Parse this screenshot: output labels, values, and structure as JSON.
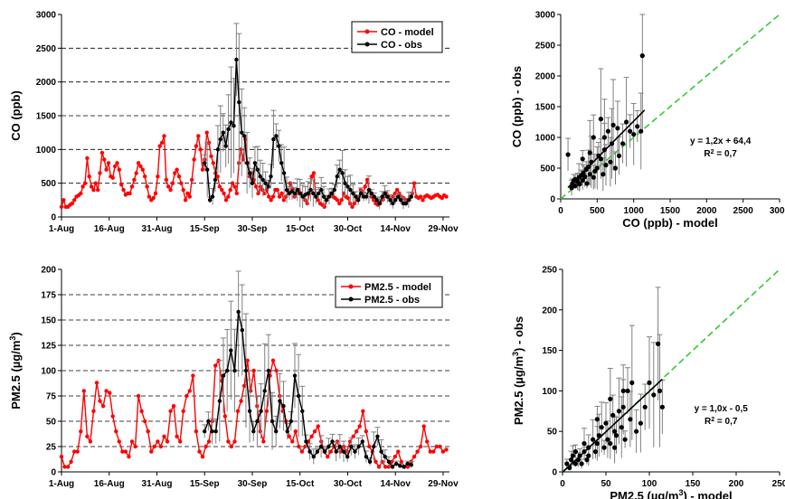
{
  "colors": {
    "model": "#ff0000",
    "obs": "#000000",
    "identity": "#33cc33",
    "fit": "#000000",
    "errorbar": "#808080",
    "grid": "#000000"
  },
  "chart_data": [
    {
      "type": "line",
      "xlabel": "",
      "ylabel": "CO (ppb)",
      "ylim": [
        0,
        3000
      ],
      "yticks": [
        0,
        500,
        1000,
        1500,
        2000,
        2500,
        3000
      ],
      "xtick_labels": [
        "1-Aug",
        "16-Aug",
        "31-Aug",
        "15-Sep",
        "30-Sep",
        "15-Oct",
        "30-Oct",
        "14-Nov",
        "29-Nov"
      ],
      "xtick_days": [
        0,
        15,
        30,
        45,
        60,
        75,
        90,
        105,
        120
      ],
      "x_unit": "days after 1-Aug",
      "legend": "top-right",
      "grid": "horizontal dashed",
      "series": [
        {
          "name": "CO - model",
          "color": "#ff0000",
          "x_start_day": 0,
          "x_step_days": 1,
          "values": [
            150,
            250,
            150,
            150,
            180,
            200,
            250,
            300,
            320,
            350,
            450,
            500,
            870,
            600,
            450,
            400,
            500,
            400,
            650,
            950,
            850,
            700,
            800,
            600,
            580,
            750,
            800,
            700,
            480,
            400,
            330,
            350,
            350,
            450,
            550,
            650,
            800,
            750,
            700,
            600,
            450,
            300,
            250,
            280,
            350,
            600,
            1050,
            1100,
            1200,
            550,
            450,
            400,
            500,
            650,
            700,
            600,
            500,
            400,
            250,
            350,
            300,
            550,
            850,
            1050,
            1200,
            1000,
            700,
            850,
            1250,
            1100,
            900,
            800,
            650,
            600,
            450,
            400,
            350,
            250,
            300,
            400,
            500,
            450,
            350,
            800,
            1000,
            850,
            1150,
            800,
            600,
            650,
            550,
            450,
            350,
            450,
            400,
            350,
            400,
            300,
            250,
            300,
            400,
            400,
            300,
            350,
            250,
            300,
            350,
            500,
            420,
            300,
            350,
            400,
            350,
            300,
            250,
            200,
            350,
            600,
            650,
            300,
            250,
            200,
            180,
            150,
            250,
            300,
            350,
            300,
            280,
            250,
            200,
            250,
            350,
            300,
            280,
            200,
            150,
            200,
            250,
            300,
            400,
            350,
            450,
            550,
            400,
            300,
            250,
            200,
            180,
            200,
            250,
            300,
            350,
            300,
            250,
            300,
            350,
            400,
            350,
            300,
            280,
            250,
            250,
            300,
            350,
            500,
            300,
            280,
            300,
            250,
            300,
            320,
            300,
            280,
            300,
            320,
            330,
            300,
            280,
            320,
            300
          ]
        },
        {
          "name": "CO - obs",
          "color": "#000000",
          "x_start_day": 45,
          "x_step_days": 1,
          "values": [
            800,
            700,
            250,
            300,
            550,
            1000,
            1150,
            1250,
            1050,
            1300,
            1400,
            1350,
            2330,
            1700,
            1250,
            1200,
            800,
            650,
            500,
            800,
            700,
            600,
            550,
            500,
            450,
            600,
            1150,
            1200,
            1050,
            800,
            650,
            400,
            350,
            380,
            350,
            400,
            350,
            300,
            330,
            350,
            400,
            350,
            300,
            350,
            400,
            300,
            250,
            300,
            350,
            400,
            600,
            700,
            650,
            500,
            450,
            400,
            350,
            300,
            250,
            350,
            300,
            300,
            400,
            350,
            300,
            250,
            200,
            300,
            350,
            300,
            250,
            200,
            250,
            300,
            250,
            200,
            200,
            250,
            300
          ]
        }
      ]
    },
    {
      "type": "scatter",
      "xlabel": "CO (ppb) - model",
      "ylabel": "CO (ppb) - obs",
      "xlim": [
        0,
        3000
      ],
      "ylim": [
        0,
        3000
      ],
      "xticks": [
        0,
        500,
        1000,
        1500,
        2000,
        2500,
        3000
      ],
      "yticks": [
        0,
        500,
        1000,
        1500,
        2000,
        2500,
        3000
      ],
      "identity_line": true,
      "fit_line": {
        "slope": 1.2,
        "intercept": 64.4,
        "x_range": [
          100,
          1150
        ]
      },
      "equation": "y = 1,2x + 64,4",
      "r2_label": "R",
      "r2_value": " = 0,7",
      "points": [
        [
          100,
          720
        ],
        [
          150,
          180
        ],
        [
          160,
          250
        ],
        [
          180,
          300
        ],
        [
          200,
          210
        ],
        [
          200,
          320
        ],
        [
          230,
          280
        ],
        [
          250,
          350
        ],
        [
          260,
          240
        ],
        [
          280,
          380
        ],
        [
          300,
          300
        ],
        [
          310,
          420
        ],
        [
          330,
          360
        ],
        [
          350,
          480
        ],
        [
          360,
          250
        ],
        [
          380,
          520
        ],
        [
          400,
          400
        ],
        [
          420,
          600
        ],
        [
          450,
          350
        ],
        [
          470,
          450
        ],
        [
          500,
          500
        ],
        [
          520,
          700
        ],
        [
          550,
          650
        ],
        [
          580,
          400
        ],
        [
          600,
          800
        ],
        [
          620,
          550
        ],
        [
          650,
          1100
        ],
        [
          680,
          600
        ],
        [
          700,
          900
        ],
        [
          720,
          1200
        ],
        [
          750,
          500
        ],
        [
          780,
          1150
        ],
        [
          800,
          700
        ],
        [
          850,
          900
        ],
        [
          900,
          1250
        ],
        [
          950,
          1100
        ],
        [
          1000,
          1050
        ],
        [
          1050,
          1180
        ],
        [
          1100,
          1100
        ],
        [
          1120,
          2330
        ],
        [
          300,
          650
        ],
        [
          400,
          750
        ],
        [
          450,
          1000
        ],
        [
          550,
          1300
        ],
        [
          600,
          1000
        ]
      ]
    },
    {
      "type": "line",
      "xlabel": "",
      "ylabel": "PM2.5 (µg/m",
      "ylabel_sup": "3",
      "ylabel_end": ")",
      "ylim": [
        0,
        200
      ],
      "yticks": [
        0,
        25,
        50,
        75,
        100,
        125,
        150,
        175,
        200
      ],
      "xtick_labels": [
        "1-Aug",
        "16-Aug",
        "31-Aug",
        "15-Sep",
        "30-Sep",
        "15-Oct",
        "30-Oct",
        "14-Nov",
        "29-Nov"
      ],
      "xtick_days": [
        0,
        15,
        30,
        45,
        60,
        75,
        90,
        105,
        120
      ],
      "x_unit": "days after 1-Aug",
      "legend": "top-right",
      "grid": "horizontal dashed",
      "series": [
        {
          "name": "PM2.5 - model",
          "color": "#ff0000",
          "x_start_day": 0,
          "x_step_days": 1,
          "values": [
            15,
            5,
            5,
            10,
            20,
            20,
            40,
            80,
            35,
            30,
            60,
            88,
            70,
            65,
            80,
            78,
            55,
            40,
            30,
            20,
            20,
            15,
            30,
            25,
            75,
            60,
            50,
            40,
            20,
            25,
            30,
            25,
            35,
            30,
            60,
            65,
            35,
            30,
            60,
            75,
            80,
            95,
            40,
            20,
            15,
            25,
            30,
            50,
            105,
            110,
            90,
            55,
            30,
            25,
            30,
            60,
            70,
            85,
            110,
            80,
            100,
            65,
            40,
            30,
            60,
            95,
            110,
            100,
            75,
            60,
            50,
            35,
            30,
            40,
            25,
            20,
            25,
            30,
            35,
            40,
            45,
            30,
            20,
            15,
            20,
            25,
            30,
            20,
            25,
            20,
            30,
            35,
            40,
            45,
            60,
            40,
            25,
            20,
            10,
            5,
            10,
            5,
            5,
            10,
            15,
            20,
            10,
            5,
            5,
            10,
            15,
            20,
            25,
            45,
            30,
            20,
            20,
            25,
            25,
            20,
            22
          ]
        },
        {
          "name": "PM2.5 - obs",
          "color": "#000000",
          "x_start_day": 45,
          "x_step_days": 1,
          "values": [
            40,
            50,
            40,
            40,
            70,
            95,
            100,
            120,
            100,
            158,
            140,
            100,
            60,
            40,
            50,
            60,
            80,
            100,
            50,
            40,
            70,
            65,
            40,
            50,
            95,
            75,
            60,
            30,
            20,
            15,
            20,
            25,
            20,
            25,
            30,
            20,
            25,
            20,
            15,
            25,
            20,
            25,
            30,
            15,
            10,
            25,
            35,
            20,
            15,
            10,
            5,
            8,
            6,
            5,
            8,
            7
          ]
        }
      ]
    },
    {
      "type": "scatter",
      "xlabel": "PM2.5 (µg/m",
      "xlabel_sup": "3",
      "xlabel_end": ") - model",
      "ylabel": "PM2.5 (µg/m",
      "ylabel_sup": "3",
      "ylabel_end": ") - obs",
      "xlim": [
        0,
        250
      ],
      "ylim": [
        0,
        250
      ],
      "xticks": [
        0,
        50,
        100,
        150,
        200,
        250
      ],
      "yticks": [
        0,
        50,
        100,
        150,
        200,
        250
      ],
      "identity_line": true,
      "fit_line": {
        "slope": 1.0,
        "intercept": -0.5,
        "x_range": [
          0,
          115
        ]
      },
      "equation": "y = 1,0x - 0,5",
      "r2_label": "R",
      "r2_value": " = 0,7",
      "points": [
        [
          5,
          10
        ],
        [
          8,
          5
        ],
        [
          10,
          15
        ],
        [
          12,
          20
        ],
        [
          15,
          10
        ],
        [
          15,
          25
        ],
        [
          18,
          15
        ],
        [
          20,
          20
        ],
        [
          22,
          10
        ],
        [
          25,
          25
        ],
        [
          28,
          15
        ],
        [
          30,
          20
        ],
        [
          30,
          30
        ],
        [
          35,
          40
        ],
        [
          38,
          25
        ],
        [
          40,
          35
        ],
        [
          42,
          45
        ],
        [
          45,
          55
        ],
        [
          48,
          30
        ],
        [
          50,
          60
        ],
        [
          52,
          40
        ],
        [
          55,
          35
        ],
        [
          58,
          70
        ],
        [
          60,
          50
        ],
        [
          62,
          45
        ],
        [
          65,
          75
        ],
        [
          68,
          55
        ],
        [
          70,
          80
        ],
        [
          72,
          40
        ],
        [
          75,
          100
        ],
        [
          78,
          65
        ],
        [
          80,
          110
        ],
        [
          85,
          50
        ],
        [
          90,
          60
        ],
        [
          95,
          80
        ],
        [
          100,
          110
        ],
        [
          105,
          95
        ],
        [
          110,
          158
        ],
        [
          112,
          100
        ],
        [
          115,
          80
        ],
        [
          25,
          35
        ],
        [
          40,
          65
        ],
        [
          55,
          90
        ],
        [
          70,
          100
        ],
        [
          60,
          30
        ]
      ]
    }
  ]
}
